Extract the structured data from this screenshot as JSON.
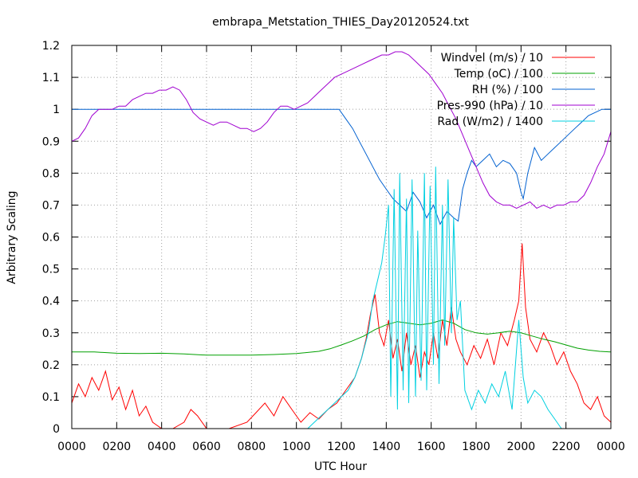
{
  "chart_data": {
    "type": "line",
    "title": "embrapa_Metstation_THIES_Day20120524.txt",
    "xlabel": "UTC Hour",
    "ylabel": "Arbitrary Scaling",
    "xlim": [
      0,
      24
    ],
    "ylim": [
      0,
      1.2
    ],
    "x_ticks": [
      0,
      2,
      4,
      6,
      8,
      10,
      12,
      14,
      16,
      18,
      20,
      22,
      24
    ],
    "x_tick_labels": [
      "0000",
      "0200",
      "0400",
      "0600",
      "0800",
      "1000",
      "1200",
      "1400",
      "1600",
      "1800",
      "2000",
      "2200",
      "0000"
    ],
    "y_ticks": [
      0,
      0.1,
      0.2,
      0.3,
      0.4,
      0.5,
      0.6,
      0.7,
      0.8,
      0.9,
      1,
      1.1,
      1.2
    ],
    "y_tick_labels": [
      "0",
      "0.1",
      "0.2",
      "0.3",
      "0.4",
      "0.5",
      "0.6",
      "0.7",
      "0.8",
      "0.9",
      "1",
      "1.1",
      "1.2"
    ],
    "grid": true,
    "legend_position": "top-right",
    "series": [
      {
        "name": "Windvel (m/s) / 10",
        "color": "#ff0000",
        "x": [
          0,
          0.3,
          0.6,
          0.9,
          1.2,
          1.5,
          1.8,
          2.1,
          2.4,
          2.7,
          3.0,
          3.3,
          3.6,
          4.0,
          4.5,
          5.0,
          5.3,
          5.6,
          6.0,
          7.0,
          7.8,
          8.2,
          8.6,
          9.0,
          9.4,
          9.8,
          10.2,
          10.6,
          11.0,
          11.4,
          11.8,
          12.2,
          12.6,
          12.9,
          13.1,
          13.3,
          13.5,
          13.7,
          13.9,
          14.1,
          14.3,
          14.5,
          14.7,
          14.9,
          15.1,
          15.3,
          15.5,
          15.7,
          15.9,
          16.1,
          16.3,
          16.5,
          16.7,
          16.9,
          17.1,
          17.3,
          17.6,
          17.9,
          18.2,
          18.5,
          18.8,
          19.1,
          19.4,
          19.7,
          19.9,
          20.05,
          20.2,
          20.4,
          20.7,
          21.0,
          21.3,
          21.6,
          21.9,
          22.2,
          22.5,
          22.8,
          23.1,
          23.4,
          23.7,
          24.0
        ],
        "values": [
          0.08,
          0.14,
          0.1,
          0.16,
          0.12,
          0.18,
          0.09,
          0.13,
          0.06,
          0.12,
          0.04,
          0.07,
          0.02,
          0.0,
          0.0,
          0.02,
          0.06,
          0.04,
          0.0,
          0.0,
          0.02,
          0.05,
          0.08,
          0.04,
          0.1,
          0.06,
          0.02,
          0.05,
          0.03,
          0.06,
          0.08,
          0.12,
          0.16,
          0.22,
          0.28,
          0.36,
          0.42,
          0.3,
          0.26,
          0.34,
          0.22,
          0.28,
          0.18,
          0.3,
          0.2,
          0.26,
          0.16,
          0.24,
          0.2,
          0.3,
          0.22,
          0.34,
          0.26,
          0.38,
          0.28,
          0.24,
          0.2,
          0.26,
          0.22,
          0.28,
          0.2,
          0.3,
          0.26,
          0.34,
          0.4,
          0.58,
          0.38,
          0.28,
          0.24,
          0.3,
          0.26,
          0.2,
          0.24,
          0.18,
          0.14,
          0.08,
          0.06,
          0.1,
          0.04,
          0.02
        ]
      },
      {
        "name": "Temp (oC) / 100",
        "color": "#00a000",
        "x": [
          0,
          1,
          2,
          3,
          4,
          5,
          6,
          7,
          8,
          9,
          10,
          11,
          11.5,
          12,
          12.5,
          13,
          13.5,
          14,
          14.5,
          15,
          15.5,
          16,
          16.5,
          17,
          17.5,
          18,
          18.5,
          19,
          19.5,
          20,
          20.5,
          21,
          21.5,
          22,
          22.5,
          23,
          23.5,
          24
        ],
        "values": [
          0.24,
          0.24,
          0.236,
          0.235,
          0.236,
          0.234,
          0.23,
          0.23,
          0.23,
          0.232,
          0.235,
          0.242,
          0.25,
          0.262,
          0.275,
          0.29,
          0.31,
          0.325,
          0.335,
          0.33,
          0.325,
          0.33,
          0.34,
          0.33,
          0.31,
          0.3,
          0.296,
          0.3,
          0.305,
          0.3,
          0.29,
          0.28,
          0.272,
          0.262,
          0.252,
          0.246,
          0.242,
          0.24
        ]
      },
      {
        "name": "RH (%) / 100",
        "color": "#0060d0",
        "x": [
          0,
          2,
          4,
          6,
          8,
          10,
          11.6,
          11.9,
          12.2,
          12.5,
          12.8,
          13.1,
          13.4,
          13.7,
          14.0,
          14.3,
          14.6,
          14.9,
          15.2,
          15.5,
          15.8,
          16.1,
          16.4,
          16.7,
          17.0,
          17.2,
          17.4,
          17.6,
          17.8,
          18.0,
          18.3,
          18.6,
          18.9,
          19.2,
          19.5,
          19.8,
          20.0,
          20.1,
          20.3,
          20.6,
          20.9,
          21.2,
          21.5,
          21.8,
          22.1,
          22.4,
          22.7,
          23.0,
          23.3,
          23.6,
          24.0
        ],
        "values": [
          1.0,
          1.0,
          1.0,
          1.0,
          1.0,
          1.0,
          1.0,
          1.0,
          0.97,
          0.94,
          0.9,
          0.86,
          0.82,
          0.78,
          0.75,
          0.72,
          0.7,
          0.68,
          0.74,
          0.71,
          0.66,
          0.7,
          0.64,
          0.68,
          0.66,
          0.65,
          0.75,
          0.8,
          0.84,
          0.82,
          0.84,
          0.86,
          0.82,
          0.84,
          0.83,
          0.8,
          0.74,
          0.72,
          0.8,
          0.88,
          0.84,
          0.86,
          0.88,
          0.9,
          0.92,
          0.94,
          0.96,
          0.98,
          0.99,
          1.0,
          1.0
        ]
      },
      {
        "name": "Pres-990 (hPa) / 10",
        "color": "#a000d0",
        "x": [
          0,
          0.3,
          0.6,
          0.9,
          1.2,
          1.5,
          1.8,
          2.1,
          2.4,
          2.7,
          3.0,
          3.3,
          3.6,
          3.9,
          4.2,
          4.5,
          4.8,
          5.1,
          5.4,
          5.7,
          6.0,
          6.3,
          6.6,
          6.9,
          7.2,
          7.5,
          7.8,
          8.1,
          8.4,
          8.7,
          9.0,
          9.3,
          9.6,
          9.9,
          10.2,
          10.5,
          10.8,
          11.1,
          11.4,
          11.7,
          12.0,
          12.3,
          12.6,
          12.9,
          13.2,
          13.5,
          13.8,
          14.1,
          14.4,
          14.7,
          15.0,
          15.3,
          15.6,
          15.9,
          16.2,
          16.5,
          16.8,
          17.1,
          17.4,
          17.7,
          18.0,
          18.3,
          18.6,
          18.9,
          19.2,
          19.5,
          19.8,
          20.1,
          20.4,
          20.7,
          21.0,
          21.3,
          21.6,
          21.9,
          22.2,
          22.5,
          22.8,
          23.1,
          23.4,
          23.7,
          24.0
        ],
        "values": [
          0.9,
          0.91,
          0.94,
          0.98,
          1.0,
          1.0,
          1.0,
          1.01,
          1.01,
          1.03,
          1.04,
          1.05,
          1.05,
          1.06,
          1.06,
          1.07,
          1.06,
          1.03,
          0.99,
          0.97,
          0.96,
          0.95,
          0.96,
          0.96,
          0.95,
          0.94,
          0.94,
          0.93,
          0.94,
          0.96,
          0.99,
          1.01,
          1.01,
          1.0,
          1.01,
          1.02,
          1.04,
          1.06,
          1.08,
          1.1,
          1.11,
          1.12,
          1.13,
          1.14,
          1.15,
          1.16,
          1.17,
          1.17,
          1.18,
          1.18,
          1.17,
          1.15,
          1.13,
          1.11,
          1.08,
          1.05,
          1.01,
          0.97,
          0.92,
          0.87,
          0.82,
          0.77,
          0.73,
          0.71,
          0.7,
          0.7,
          0.69,
          0.7,
          0.71,
          0.69,
          0.7,
          0.69,
          0.7,
          0.7,
          0.71,
          0.71,
          0.73,
          0.77,
          0.82,
          0.86,
          0.93
        ]
      },
      {
        "name": "Rad (W/m2) / 1400",
        "color": "#00d0e0",
        "x": [
          10.5,
          10.8,
          11.1,
          11.4,
          11.7,
          12.0,
          12.3,
          12.6,
          12.9,
          13.2,
          13.4,
          13.6,
          13.8,
          13.95,
          14.1,
          14.2,
          14.35,
          14.5,
          14.6,
          14.75,
          14.9,
          15.0,
          15.15,
          15.3,
          15.4,
          15.55,
          15.7,
          15.8,
          15.95,
          16.1,
          16.2,
          16.35,
          16.5,
          16.6,
          16.75,
          16.9,
          17.0,
          17.15,
          17.3,
          17.5,
          17.8,
          18.1,
          18.4,
          18.7,
          19.0,
          19.3,
          19.6,
          19.9,
          20.1,
          20.3,
          20.6,
          20.9,
          21.2,
          21.5,
          21.8
        ],
        "values": [
          0.0,
          0.02,
          0.04,
          0.06,
          0.08,
          0.1,
          0.12,
          0.16,
          0.22,
          0.3,
          0.4,
          0.46,
          0.52,
          0.6,
          0.7,
          0.1,
          0.75,
          0.06,
          0.8,
          0.12,
          0.72,
          0.08,
          0.78,
          0.1,
          0.62,
          0.15,
          0.8,
          0.12,
          0.76,
          0.2,
          0.82,
          0.14,
          0.7,
          0.26,
          0.78,
          0.3,
          0.66,
          0.34,
          0.4,
          0.12,
          0.06,
          0.12,
          0.08,
          0.14,
          0.1,
          0.18,
          0.06,
          0.34,
          0.16,
          0.08,
          0.12,
          0.1,
          0.06,
          0.03,
          0.0
        ]
      }
    ]
  }
}
